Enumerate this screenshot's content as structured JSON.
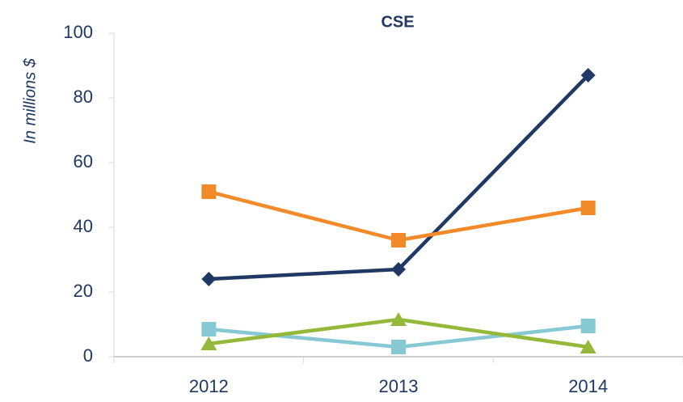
{
  "chart_data": {
    "type": "line",
    "title": "CSE",
    "y_label": "In millions $",
    "categories": [
      "2012",
      "2013",
      "2014"
    ],
    "series": [
      {
        "color": "#1f3864",
        "marker": "diamond",
        "values": [
          24,
          27,
          87
        ]
      },
      {
        "color": "#f28a2a",
        "marker": "square",
        "values": [
          51,
          36,
          46
        ]
      },
      {
        "color": "#86c8d4",
        "marker": "square",
        "values": [
          8.5,
          3,
          9.5
        ]
      },
      {
        "color": "#93b83a",
        "marker": "triangle",
        "values": [
          4,
          11.5,
          3
        ]
      }
    ],
    "ylim": [
      0,
      100
    ],
    "yticks": [
      0,
      20,
      40,
      60,
      80,
      100
    ],
    "grid": false
  }
}
